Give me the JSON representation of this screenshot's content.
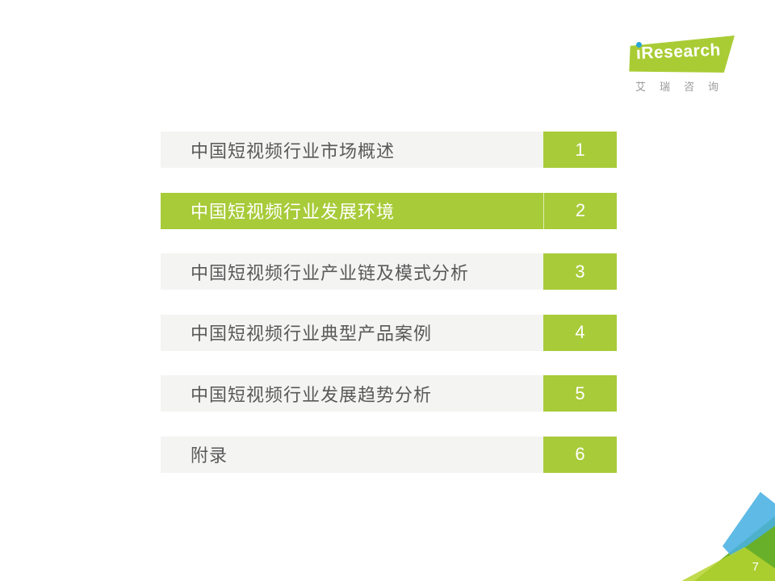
{
  "logo": {
    "wordmark_i": "ı",
    "wordmark_rest": "Research",
    "subtitle": "艾瑞咨询",
    "green": "#a9cc35",
    "dot_blue": "#2aa4d5"
  },
  "toc": {
    "items": [
      {
        "label": "中国短视频行业市场概述",
        "number": "1",
        "active": false
      },
      {
        "label": "中国短视频行业发展环境",
        "number": "2",
        "active": true
      },
      {
        "label": "中国短视频行业产业链及模式分析",
        "number": "3",
        "active": false
      },
      {
        "label": "中国短视频行业典型产品案例",
        "number": "4",
        "active": false
      },
      {
        "label": "中国短视频行业发展趋势分析",
        "number": "5",
        "active": false
      },
      {
        "label": "附录",
        "number": "6",
        "active": false
      }
    ],
    "accent_green": "#a8cb39",
    "row_bg_gray": "#f4f4f3",
    "row_text_gray": "#595959"
  },
  "footer": {
    "page_number": "7"
  },
  "corner_colors": {
    "blue": "#49b0e3",
    "green": "#69b02a",
    "yellow_green": "#b6d32f"
  }
}
